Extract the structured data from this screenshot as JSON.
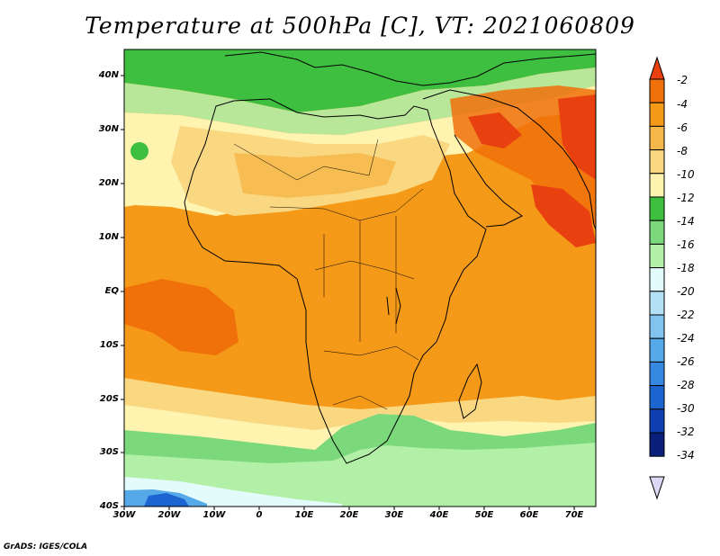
{
  "title": "Temperature at 500hPa [C], VT: 2021060809",
  "credit": "GrADS: IGES/COLA",
  "lat_labels": [
    "40N",
    "30N",
    "20N",
    "10N",
    "EQ",
    "10S",
    "20S",
    "30S",
    "40S"
  ],
  "lon_labels": [
    "30W",
    "20W",
    "10W",
    "0",
    "10E",
    "20E",
    "30E",
    "40E",
    "50E",
    "60E",
    "70E"
  ],
  "colorbar": {
    "labels": [
      "-2",
      "-4",
      "-6",
      "-8",
      "-10",
      "-12",
      "-14",
      "-16",
      "-18",
      "-20",
      "-22",
      "-24",
      "-26",
      "-28",
      "-30",
      "-32",
      "-34"
    ],
    "colors": [
      "#e8400e",
      "#f0700a",
      "#f59a18",
      "#f6b84a",
      "#fad882",
      "#fff3b0",
      "#3fbf3f",
      "#7bd97b",
      "#b2f0a8",
      "#e4fbfb",
      "#b3e0f5",
      "#82c4ef",
      "#56a9e8",
      "#3488df",
      "#1c64d0",
      "#0d3fb0",
      "#0a1f7a",
      "#ddd8f5"
    ]
  },
  "chart_data": {
    "type": "heatmap",
    "title": "Temperature at 500hPa [C], VT: 2021060809",
    "variable": "Temperature at 500hPa",
    "units": "C",
    "valid_time": "2021060809",
    "lon_range": [
      -30,
      75
    ],
    "lat_range": [
      -40,
      45
    ],
    "contour_levels": [
      -2,
      -4,
      -6,
      -8,
      -10,
      -12,
      -14,
      -16,
      -18,
      -20,
      -22,
      -24,
      -26,
      -28,
      -30,
      -32,
      -34
    ],
    "approx_fields": [
      {
        "region": "Arabia / Iran / Pakistan",
        "range_c": [
          -6,
          -2
        ]
      },
      {
        "region": "Arabian Sea / northern Indian Ocean",
        "range_c": [
          -6,
          -2
        ]
      },
      {
        "region": "Tropical Atlantic near EQ",
        "range_c": [
          -6,
          -4
        ]
      },
      {
        "region": "Central Africa",
        "range_c": [
          -8,
          -6
        ]
      },
      {
        "region": "Sahara",
        "range_c": [
          -10,
          -8
        ]
      },
      {
        "region": "Mediterranean / Europe",
        "range_c": [
          -16,
          -12
        ]
      },
      {
        "region": "Southern Africa / 30S",
        "range_c": [
          -18,
          -12
        ]
      },
      {
        "region": "South Atlantic near 40S 20W",
        "range_c": [
          -30,
          -20
        ]
      }
    ]
  }
}
